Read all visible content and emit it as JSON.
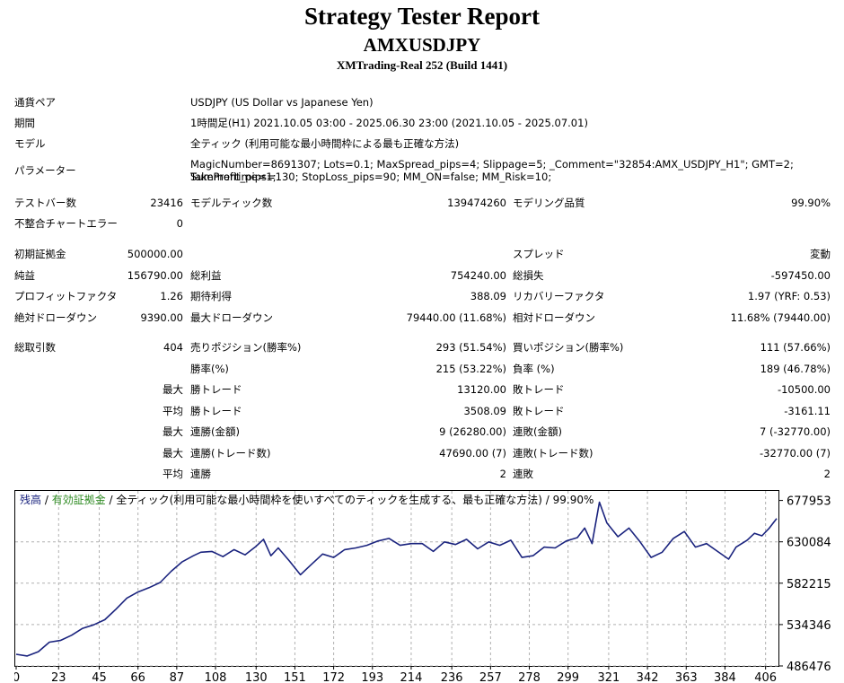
{
  "header": {
    "title": "Strategy Tester Report",
    "expert": "AMXUSDJPY",
    "server": "XMTrading-Real 252 (Build 1441)"
  },
  "info": {
    "symbol_label": "通貨ペア",
    "symbol_value": "USDJPY (US Dollar vs Japanese Yen)",
    "period_label": "期間",
    "period_value": "1時間足(H1) 2021.10.05 03:00 - 2025.06.30 23:00 (2021.10.05 - 2025.07.01)",
    "model_label": "モデル",
    "model_value": "全ティック (利用可能な最小時間枠による最も正確な方法)",
    "params_label": "パラメーター",
    "params_line1": "MagicNumber=8691307; Lots=0.1; MaxSpread_pips=4; Slippage=5; _Comment=\"32854:AMX_USDJPY_H1\"; GMT=2; Summertime=1;",
    "params_line2": "TakeProfit_pips=130; StopLoss_pips=90; MM_ON=false; MM_Risk=10;"
  },
  "stats": {
    "bars_label": "テストバー数",
    "bars_value": "23416",
    "ticks_label": "モデルティック数",
    "ticks_value": "139474260",
    "quality_label": "モデリング品質",
    "quality_value": "99.90%",
    "mismatch_label": "不整合チャートエラー",
    "mismatch_value": "0",
    "deposit_label": "初期証拠金",
    "deposit_value": "500000.00",
    "spread_label": "スプレッド",
    "spread_value": "変動",
    "net_label": "純益",
    "net_value": "156790.00",
    "gross_profit_label": "総利益",
    "gross_profit_value": "754240.00",
    "gross_loss_label": "総損失",
    "gross_loss_value": "-597450.00",
    "pf_label": "プロフィットファクタ",
    "pf_value": "1.26",
    "expected_label": "期待利得",
    "expected_value": "388.09",
    "recovery_label": "リカバリーファクタ",
    "recovery_value": "1.97 (YRF: 0.53)",
    "abs_dd_label": "絶対ドローダウン",
    "abs_dd_value": "9390.00",
    "max_dd_label": "最大ドローダウン",
    "max_dd_value": "79440.00 (11.68%)",
    "rel_dd_label": "相対ドローダウン",
    "rel_dd_value": "11.68% (79440.00)",
    "total_trades_label": "総取引数",
    "total_trades_value": "404",
    "short_label": "売りポジション(勝率%)",
    "short_value": "293 (51.54%)",
    "long_label": "買いポジション(勝率%)",
    "long_value": "111 (57.66%)",
    "win_rate_label": "勝率(%)",
    "win_rate_value": "215 (53.22%)",
    "loss_rate_label": "負率 (%)",
    "loss_rate_value": "189 (46.78%)",
    "largest_label": "最大",
    "largest_win_label": "勝トレード",
    "largest_win_value": "13120.00",
    "largest_loss_label": "敗トレード",
    "largest_loss_value": "-10500.00",
    "average_label": "平均",
    "avg_win_label": "勝トレード",
    "avg_win_value": "3508.09",
    "avg_loss_label": "敗トレード",
    "avg_loss_value": "-3161.11",
    "max1_label": "最大",
    "max_consec_win_label": "連勝(金額)",
    "max_consec_win_value": "9 (26280.00)",
    "max_consec_loss_label": "連敗(金額)",
    "max_consec_loss_value": "7 (-32770.00)",
    "max2_label": "最大",
    "max_profit_consec_label": "連勝(トレード数)",
    "max_profit_consec_value": "47690.00 (7)",
    "max_loss_consec_label": "連敗(トレード数)",
    "max_loss_consec_value": "-32770.00 (7)",
    "avg2_label": "平均",
    "avg_consec_win_label": "連勝",
    "avg_consec_win_value": "2",
    "avg_consec_loss_label": "連敗",
    "avg_consec_loss_value": "2"
  },
  "chart_legend": {
    "balance": "残高",
    "sep1": " / ",
    "equity": "有効証拠金",
    "sep2": " / ",
    "desc": "全ティック(利用可能な最小時間枠を使いすべてのティックを生成する、最も正確な方法) / 99.90%"
  },
  "chart_data": {
    "type": "line",
    "title": "",
    "xlabel": "",
    "ylabel": "",
    "x_ticks": [
      "0",
      "23",
      "45",
      "66",
      "87",
      "108",
      "130",
      "151",
      "172",
      "193",
      "214",
      "236",
      "257",
      "278",
      "299",
      "321",
      "342",
      "363",
      "384",
      "406"
    ],
    "y_ticks": [
      "677953",
      "630084",
      "582215",
      "534346",
      "486476"
    ],
    "xlim": [
      0,
      412
    ],
    "ylim": [
      486476,
      690000
    ],
    "grid": true,
    "colors": {
      "balance": "#1a237e",
      "equity": "#2e8b22"
    },
    "series": [
      {
        "name": "残高",
        "x": [
          0,
          6,
          12,
          18,
          24,
          30,
          36,
          42,
          48,
          54,
          60,
          66,
          72,
          78,
          84,
          90,
          96,
          100,
          106,
          112,
          118,
          124,
          130,
          134,
          138,
          142,
          148,
          154,
          160,
          166,
          172,
          178,
          184,
          190,
          196,
          202,
          208,
          214,
          220,
          226,
          232,
          238,
          244,
          250,
          256,
          262,
          268,
          274,
          280,
          286,
          292,
          298,
          304,
          308,
          312,
          316,
          320,
          326,
          332,
          338,
          344,
          350,
          356,
          362,
          368,
          374,
          380,
          386,
          390,
          396,
          400,
          404,
          408,
          412
        ],
        "y": [
          500000,
          498000,
          503000,
          514000,
          516000,
          522000,
          530000,
          534000,
          540000,
          552000,
          565000,
          572000,
          577000,
          583000,
          596000,
          607000,
          614000,
          618000,
          619000,
          613000,
          621000,
          615000,
          625000,
          633000,
          614000,
          623000,
          608000,
          592000,
          604000,
          616000,
          612000,
          621000,
          623000,
          626000,
          631000,
          634000,
          626000,
          628000,
          628000,
          619000,
          630000,
          627000,
          633000,
          622000,
          630000,
          626000,
          632000,
          612000,
          614000,
          624000,
          623000,
          631000,
          635000,
          646000,
          628000,
          676000,
          652000,
          636000,
          646000,
          630000,
          612000,
          618000,
          634000,
          642000,
          624000,
          628000,
          619000,
          610000,
          624000,
          632000,
          640000,
          637000,
          646000,
          657000
        ]
      }
    ]
  }
}
